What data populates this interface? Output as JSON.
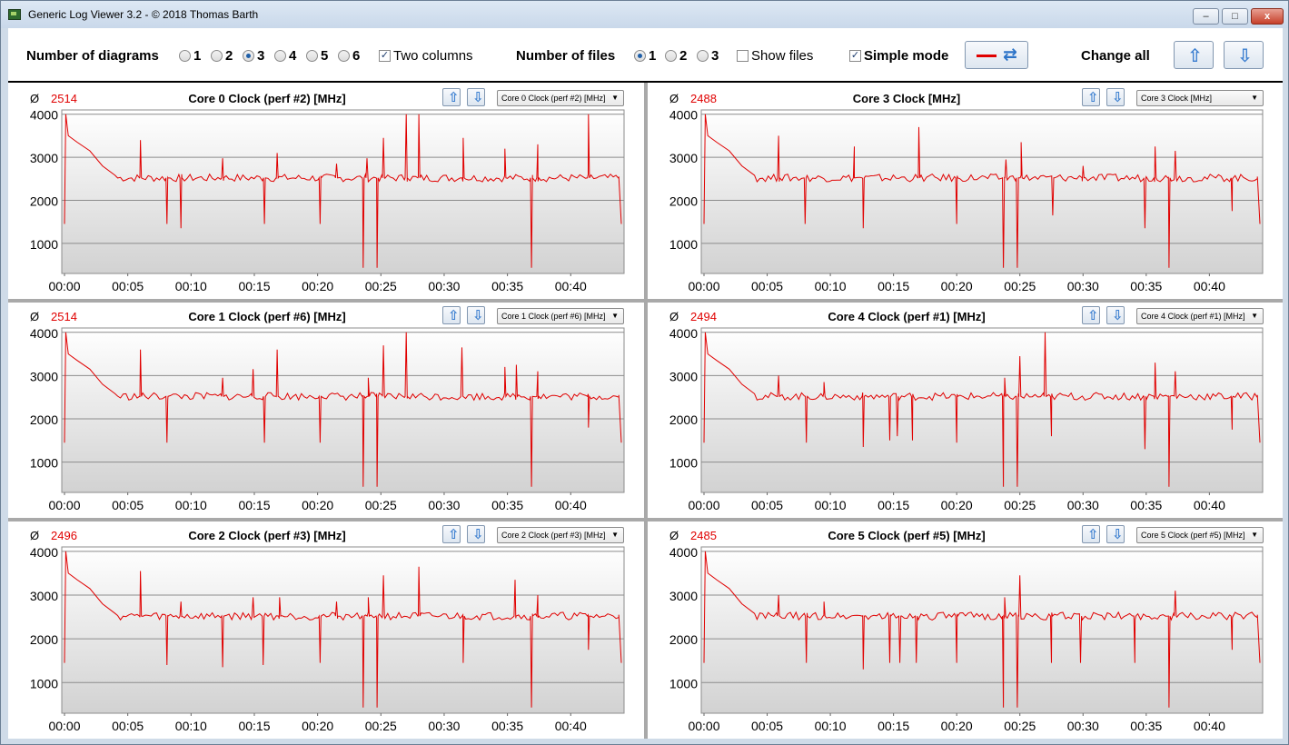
{
  "window": {
    "title": "Generic Log Viewer 3.2 - © 2018 Thomas Barth",
    "min_glyph": "–",
    "max_glyph": "□",
    "close_glyph": "x"
  },
  "toolbar": {
    "diagrams_label": "Number of diagrams",
    "diagram_options": [
      "1",
      "2",
      "3",
      "4",
      "5",
      "6"
    ],
    "diagram_selected": "3",
    "two_columns_label": "Two columns",
    "two_columns_checked": true,
    "files_label": "Number of files",
    "file_options": [
      "1",
      "2",
      "3"
    ],
    "file_selected": "1",
    "show_files_label": "Show files",
    "show_files_checked": false,
    "simple_mode_label": "Simple mode",
    "simple_mode_checked": true,
    "change_all_label": "Change all",
    "check_glyph": "✓"
  },
  "accent_colors": {
    "series": "#e00000",
    "up": "#3c7fd0"
  },
  "panels": [
    {
      "avg_symbol": "Ø",
      "avg": "2514",
      "title": "Core 0 Clock (perf #2) [MHz]",
      "select": "Core 0 Clock (perf #2) [MHz]",
      "profile": 0
    },
    {
      "avg_symbol": "Ø",
      "avg": "2488",
      "title": "Core 3 Clock [MHz]",
      "select": "Core 3 Clock [MHz]",
      "profile": 1
    },
    {
      "avg_symbol": "Ø",
      "avg": "2514",
      "title": "Core 1 Clock (perf #6) [MHz]",
      "select": "Core 1 Clock (perf #6) [MHz]",
      "profile": 2
    },
    {
      "avg_symbol": "Ø",
      "avg": "2494",
      "title": "Core 4 Clock (perf #1) [MHz]",
      "select": "Core 4 Clock (perf #1) [MHz]",
      "profile": 3
    },
    {
      "avg_symbol": "Ø",
      "avg": "2496",
      "title": "Core 2 Clock (perf #3) [MHz]",
      "select": "Core 2 Clock (perf #3) [MHz]",
      "profile": 4
    },
    {
      "avg_symbol": "Ø",
      "avg": "2485",
      "title": "Core 5 Clock (perf #5) [MHz]",
      "select": "Core 5 Clock (perf #5) [MHz]",
      "profile": 5
    }
  ],
  "chart_data": {
    "type": "line",
    "x_tick_labels": [
      "00:00",
      "00:05",
      "00:10",
      "00:15",
      "00:20",
      "00:25",
      "00:30",
      "00:35",
      "00:40"
    ],
    "y_tick_labels": [
      "1000",
      "2000",
      "3000",
      "4000"
    ],
    "xlim_minutes": [
      0,
      44
    ],
    "ylim": [
      300,
      4100
    ],
    "grid": true,
    "series_color": "#e00000",
    "common_shape": {
      "baseline": 2520,
      "start": [
        [
          0,
          1450
        ],
        [
          0.1,
          4000
        ],
        [
          0.3,
          3500
        ],
        [
          1,
          3350
        ],
        [
          2,
          3150
        ],
        [
          3,
          2800
        ],
        [
          4,
          2580
        ]
      ],
      "end": [
        [
          43.8,
          2550
        ],
        [
          44,
          1450
        ]
      ]
    },
    "profiles": [
      {
        "drops": [
          [
            0,
            0.55,
            1450
          ],
          [
            23.6,
            0,
            430
          ],
          [
            24.7,
            0,
            430
          ],
          [
            36.9,
            0,
            430
          ],
          [
            3.9,
            0,
            1450
          ],
          [
            8.1,
            0,
            1450
          ],
          [
            9.2,
            0,
            1350
          ],
          [
            15.8,
            0,
            1450
          ],
          [
            20.2,
            0,
            1450
          ]
        ],
        "spikes": [
          [
            6,
            3400
          ],
          [
            12.5,
            2980
          ],
          [
            16.8,
            3100
          ],
          [
            21.5,
            2850
          ],
          [
            23.9,
            2980
          ],
          [
            25.2,
            3450
          ],
          [
            27,
            4000
          ],
          [
            28,
            4000
          ],
          [
            31.5,
            3450
          ],
          [
            34.8,
            3200
          ],
          [
            37.4,
            3300
          ],
          [
            41.4,
            4000
          ]
        ]
      },
      {
        "drops": [
          [
            8,
            0,
            1450
          ],
          [
            12.6,
            0,
            1350
          ],
          [
            20,
            0,
            1450
          ],
          [
            23.7,
            0,
            430
          ],
          [
            24.8,
            0,
            430
          ],
          [
            27.6,
            0,
            1650
          ],
          [
            34.9,
            0,
            1350
          ],
          [
            36.8,
            0,
            430
          ],
          [
            41.8,
            0,
            1750
          ]
        ],
        "spikes": [
          [
            5.9,
            3500
          ],
          [
            11.9,
            3250
          ],
          [
            17,
            3700
          ],
          [
            23.9,
            2950
          ],
          [
            25.1,
            3350
          ],
          [
            30,
            2800
          ],
          [
            35.7,
            3250
          ],
          [
            37.3,
            3150
          ]
        ]
      },
      {
        "drops": [
          [
            8.1,
            0,
            1450
          ],
          [
            15.8,
            0,
            1450
          ],
          [
            20.2,
            0,
            1450
          ],
          [
            23.6,
            0,
            430
          ],
          [
            24.7,
            0,
            430
          ],
          [
            36.9,
            0,
            430
          ],
          [
            41.4,
            0,
            1800
          ]
        ],
        "spikes": [
          [
            3.9,
            3000
          ],
          [
            6,
            3600
          ],
          [
            12.5,
            2950
          ],
          [
            14.9,
            3150
          ],
          [
            16.8,
            3600
          ],
          [
            24,
            2950
          ],
          [
            25.2,
            3700
          ],
          [
            27,
            4000
          ],
          [
            31.4,
            3650
          ],
          [
            34.8,
            3200
          ],
          [
            35.7,
            3250
          ],
          [
            37.4,
            3100
          ]
        ]
      },
      {
        "drops": [
          [
            8.1,
            0,
            1450
          ],
          [
            12.6,
            0,
            1350
          ],
          [
            14.7,
            0,
            1500
          ],
          [
            15.3,
            0,
            1600
          ],
          [
            16.5,
            0,
            1500
          ],
          [
            20,
            0,
            1450
          ],
          [
            23.7,
            0,
            430
          ],
          [
            24.8,
            0,
            430
          ],
          [
            27.5,
            0,
            1600
          ],
          [
            34.9,
            0,
            1300
          ],
          [
            36.8,
            0,
            430
          ],
          [
            41.8,
            0,
            1750
          ]
        ],
        "spikes": [
          [
            5.9,
            3000
          ],
          [
            9.5,
            2850
          ],
          [
            23.8,
            2950
          ],
          [
            25,
            3450
          ],
          [
            27,
            4000
          ],
          [
            35.7,
            3300
          ],
          [
            37.3,
            3100
          ]
        ]
      },
      {
        "drops": [
          [
            8.1,
            0,
            1400
          ],
          [
            12.5,
            0,
            1350
          ],
          [
            15.7,
            0,
            1400
          ],
          [
            20.2,
            0,
            1450
          ],
          [
            23.6,
            0,
            430
          ],
          [
            24.7,
            0,
            430
          ],
          [
            31.5,
            0,
            1450
          ],
          [
            36.9,
            0,
            430
          ],
          [
            41.4,
            0,
            1750
          ]
        ],
        "spikes": [
          [
            3.9,
            3150
          ],
          [
            6,
            3550
          ],
          [
            9.2,
            2850
          ],
          [
            14.9,
            2950
          ],
          [
            17,
            2950
          ],
          [
            21.5,
            2850
          ],
          [
            24,
            2950
          ],
          [
            25.2,
            3450
          ],
          [
            28,
            3650
          ],
          [
            35.6,
            3350
          ],
          [
            37.4,
            3000
          ]
        ]
      },
      {
        "drops": [
          [
            8.1,
            0,
            1450
          ],
          [
            12.6,
            0,
            1300
          ],
          [
            14.7,
            0,
            1450
          ],
          [
            15.5,
            0,
            1450
          ],
          [
            16.8,
            0,
            1450
          ],
          [
            20,
            0,
            1450
          ],
          [
            23.7,
            0,
            430
          ],
          [
            24.8,
            0,
            430
          ],
          [
            27.5,
            0,
            1450
          ],
          [
            29.8,
            0,
            1450
          ],
          [
            34.1,
            0,
            1450
          ],
          [
            36.8,
            0,
            430
          ],
          [
            41.8,
            0,
            1750
          ]
        ],
        "spikes": [
          [
            5.9,
            3000
          ],
          [
            9.5,
            2850
          ],
          [
            23.8,
            2950
          ],
          [
            25,
            3450
          ],
          [
            37.3,
            3100
          ]
        ]
      }
    ]
  }
}
